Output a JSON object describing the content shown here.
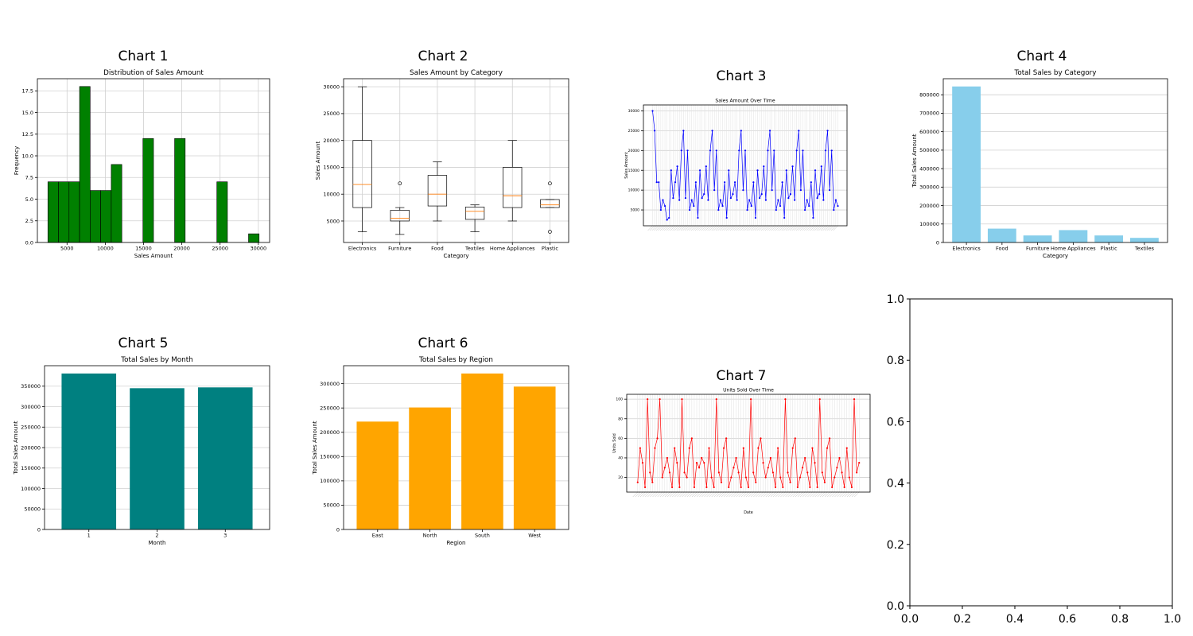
{
  "labels": {
    "chart1": "Chart 1",
    "chart2": "Chart 2",
    "chart3": "Chart 3",
    "chart4": "Chart 4",
    "chart5": "Chart 5",
    "chart6": "Chart 6",
    "chart7": "Chart 7"
  },
  "chart_data": [
    {
      "id": "chart1",
      "type": "bar",
      "subtype": "histogram",
      "title": "Distribution of Sales Amount",
      "xlabel": "Sales Amount",
      "ylabel": "Frequency",
      "color": "#008000",
      "bins": [
        {
          "x0": 2500,
          "x1": 3880,
          "count": 7
        },
        {
          "x0": 3880,
          "x1": 5260,
          "count": 7
        },
        {
          "x0": 5260,
          "x1": 6640,
          "count": 7
        },
        {
          "x0": 6640,
          "x1": 8020,
          "count": 18
        },
        {
          "x0": 8020,
          "x1": 9400,
          "count": 6
        },
        {
          "x0": 9400,
          "x1": 10780,
          "count": 6
        },
        {
          "x0": 10780,
          "x1": 12160,
          "count": 9
        },
        {
          "x0": 14920,
          "x1": 16300,
          "count": 12
        },
        {
          "x0": 19060,
          "x1": 20440,
          "count": 12
        },
        {
          "x0": 24580,
          "x1": 25960,
          "count": 7
        },
        {
          "x0": 28720,
          "x1": 30100,
          "count": 1
        }
      ],
      "xlim": [
        1125,
        31475
      ],
      "ylim": [
        0,
        18.9
      ],
      "xticks": [
        5000,
        10000,
        15000,
        20000,
        25000,
        30000
      ],
      "yticks": [
        0.0,
        2.5,
        5.0,
        7.5,
        10.0,
        12.5,
        15.0,
        17.5
      ],
      "ytick_labels": [
        "0.0",
        "2.5",
        "5.0",
        "7.5",
        "10.0",
        "12.5",
        "15.0",
        "17.5"
      ],
      "grid": true
    },
    {
      "id": "chart2",
      "type": "box",
      "title": "Sales Amount by Category",
      "xlabel": "Category",
      "ylabel": "Sales Amount",
      "categories": [
        "Electronics",
        "Furniture",
        "Food",
        "Textiles",
        "Home Appliances",
        "Plastic"
      ],
      "boxes": [
        {
          "whislo": 3000,
          "q1": 7500,
          "med": 11800,
          "q3": 20000,
          "whishi": 30000,
          "fliers": []
        },
        {
          "whislo": 2500,
          "q1": 5000,
          "med": 5500,
          "q3": 7000,
          "whishi": 7500,
          "fliers": [
            12000
          ]
        },
        {
          "whislo": 5000,
          "q1": 7800,
          "med": 10000,
          "q3": 13500,
          "whishi": 16000,
          "fliers": []
        },
        {
          "whislo": 3000,
          "q1": 5300,
          "med": 6800,
          "q3": 7600,
          "whishi": 8000,
          "fliers": []
        },
        {
          "whislo": 5000,
          "q1": 7500,
          "med": 9700,
          "q3": 15000,
          "whishi": 20000,
          "fliers": []
        },
        {
          "whislo": 7500,
          "q1": 7500,
          "med": 8000,
          "q3": 9000,
          "whishi": 9000,
          "fliers": [
            12000,
            3000
          ]
        }
      ],
      "ylim": [
        1000,
        31500
      ],
      "yticks": [
        5000,
        10000,
        15000,
        20000,
        25000,
        30000
      ],
      "grid": true
    },
    {
      "id": "chart3",
      "type": "line",
      "title": "Sales Amount Over Time",
      "xlabel": "",
      "ylabel": "Sales Amount",
      "color": "#0000ff",
      "series": [
        {
          "values": [
            30000,
            25000,
            12000,
            12000,
            5000,
            7500,
            6000,
            2500,
            3000,
            15000,
            8000,
            12000,
            16000,
            7500,
            20000,
            25000,
            8000,
            20000,
            5000,
            7500,
            6000,
            12000,
            3000,
            15000,
            8000,
            9000,
            16000,
            7500,
            20000,
            25000,
            10000,
            20000,
            5000,
            7500,
            6000,
            12000,
            3000,
            15000,
            8000,
            9000,
            12000,
            7500,
            20000,
            25000,
            10000,
            20000,
            5000,
            7500,
            6000,
            12000,
            3000,
            15000,
            8000,
            9000,
            16000,
            7500,
            20000,
            25000,
            10000,
            20000,
            5000,
            7500,
            6000,
            12000,
            3000,
            15000,
            8000,
            9000,
            16000,
            7500,
            20000,
            25000,
            10000,
            20000,
            5000,
            7500,
            6000,
            12000,
            3000,
            15000,
            8000,
            9000,
            16000,
            7500,
            20000,
            25000,
            10000,
            20000,
            5000,
            7500,
            6000
          ]
        }
      ],
      "ylim": [
        1000,
        31500
      ],
      "yticks": [
        5000,
        10000,
        15000,
        20000,
        25000,
        30000
      ],
      "grid": true
    },
    {
      "id": "chart4",
      "type": "bar",
      "title": "Total Sales by Category",
      "xlabel": "Category",
      "ylabel": "Total Sales Amount",
      "color": "#87ceeb",
      "categories": [
        "Electronics",
        "Food",
        "Furniture",
        "Home Appliances",
        "Plastic",
        "Textiles"
      ],
      "values": [
        845000,
        75000,
        38000,
        67000,
        38000,
        25000
      ],
      "ylim": [
        0,
        887000
      ],
      "yticks": [
        0,
        100000,
        200000,
        300000,
        400000,
        500000,
        600000,
        700000,
        800000
      ],
      "grid": true
    },
    {
      "id": "chart5",
      "type": "bar",
      "title": "Total Sales by Month",
      "xlabel": "Month",
      "ylabel": "Total Sales Amount",
      "color": "#008080",
      "categories": [
        "1",
        "2",
        "3"
      ],
      "values": [
        381000,
        345000,
        347000
      ],
      "ylim": [
        0,
        400000
      ],
      "yticks": [
        0,
        50000,
        100000,
        150000,
        200000,
        250000,
        300000,
        350000
      ],
      "grid": true
    },
    {
      "id": "chart6",
      "type": "bar",
      "title": "Total Sales by Region",
      "xlabel": "Region",
      "ylabel": "Total Sales Amount",
      "color": "#ffa500",
      "categories": [
        "East",
        "North",
        "South",
        "West"
      ],
      "values": [
        222000,
        251000,
        321000,
        294000
      ],
      "ylim": [
        0,
        337000
      ],
      "yticks": [
        0,
        50000,
        100000,
        150000,
        200000,
        250000,
        300000
      ],
      "grid": true
    },
    {
      "id": "chart7",
      "type": "line",
      "title": "Units Sold Over Time",
      "xlabel": "Date",
      "ylabel": "Units Sold",
      "color": "#ff0000",
      "series": [
        {
          "values": [
            15,
            50,
            35,
            10,
            100,
            25,
            15,
            50,
            60,
            100,
            20,
            30,
            40,
            25,
            10,
            50,
            35,
            10,
            100,
            25,
            20,
            50,
            60,
            10,
            35,
            30,
            40,
            35,
            10,
            50,
            20,
            10,
            100,
            25,
            15,
            50,
            60,
            10,
            20,
            30,
            40,
            25,
            10,
            50,
            20,
            10,
            100,
            25,
            15,
            50,
            60,
            35,
            20,
            30,
            40,
            25,
            10,
            50,
            20,
            10,
            100,
            25,
            15,
            50,
            60,
            10,
            20,
            30,
            40,
            25,
            10,
            50,
            35,
            10,
            100,
            25,
            15,
            50,
            60,
            10,
            20,
            30,
            40,
            25,
            10,
            50,
            20,
            10,
            100,
            25,
            35
          ]
        }
      ],
      "ylim": [
        5,
        105
      ],
      "yticks": [
        20,
        40,
        60,
        80,
        100
      ],
      "grid": true
    },
    {
      "id": "chart8",
      "type": "line",
      "title": "",
      "series": [],
      "xlim": [
        0.0,
        1.0
      ],
      "ylim": [
        0.0,
        1.0
      ],
      "xticks": [
        0.0,
        0.2,
        0.4,
        0.6,
        0.8,
        1.0
      ],
      "yticks": [
        0.0,
        0.2,
        0.4,
        0.6,
        0.8,
        1.0
      ],
      "xtick_labels": [
        "0.0",
        "0.2",
        "0.4",
        "0.6",
        "0.8",
        "1.0"
      ],
      "ytick_labels": [
        "0.0",
        "0.2",
        "0.4",
        "0.6",
        "0.8",
        "1.0"
      ],
      "grid": false
    }
  ]
}
